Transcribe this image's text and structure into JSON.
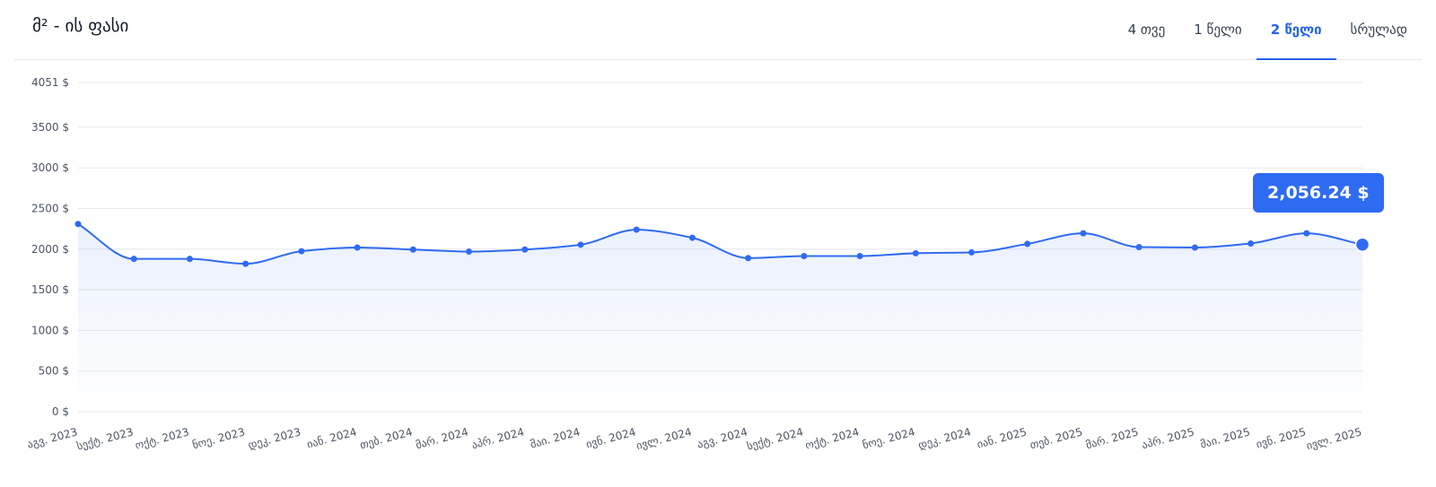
{
  "header": {
    "title": "მ² - ის ფასი"
  },
  "tabs": [
    {
      "label": "4 თვე",
      "active": false
    },
    {
      "label": "1 წელი",
      "active": false
    },
    {
      "label": "2 წელი",
      "active": true
    },
    {
      "label": "სრულად",
      "active": false
    }
  ],
  "colors": {
    "accent": "#2f6bf2",
    "grid": "#e5e7eb",
    "axis_text": "#4b5563"
  },
  "tooltip": {
    "value": "2,056.24 $"
  },
  "chart_data": {
    "type": "area",
    "title": "",
    "xlabel": "",
    "ylabel": "",
    "ylim": [
      0,
      4051
    ],
    "y_ticks": [
      {
        "value": 0,
        "label": "0 $"
      },
      {
        "value": 500,
        "label": "500 $"
      },
      {
        "value": 1000,
        "label": "1000 $"
      },
      {
        "value": 1500,
        "label": "1500 $"
      },
      {
        "value": 2000,
        "label": "2000 $"
      },
      {
        "value": 2500,
        "label": "2500 $"
      },
      {
        "value": 3000,
        "label": "3000 $"
      },
      {
        "value": 3500,
        "label": "3500 $"
      },
      {
        "value": 4051,
        "label": "4051 $"
      }
    ],
    "categories": [
      "აგვ. 2023",
      "სექტ. 2023",
      "ოქტ. 2023",
      "ნოე. 2023",
      "დეკ. 2023",
      "იან. 2024",
      "თებ. 2024",
      "მარ. 2024",
      "აპრ. 2024",
      "მაი. 2024",
      "ივნ. 2024",
      "ივლ. 2024",
      "აგვ. 2024",
      "სექტ. 2024",
      "ოქტ. 2024",
      "ნოე. 2024",
      "დეკ. 2024",
      "იან. 2025",
      "თებ. 2025",
      "მარ. 2025",
      "აპრ. 2025",
      "მაი. 2025",
      "ივნ. 2025",
      "ივლ. 2025"
    ],
    "values": [
      2310,
      1880,
      1880,
      1820,
      1975,
      2020,
      1995,
      1970,
      1995,
      2055,
      2240,
      2140,
      1890,
      1915,
      1915,
      1950,
      1960,
      2065,
      2195,
      2025,
      2020,
      2070,
      2195,
      2056.24
    ],
    "grid": true,
    "legend": "none"
  }
}
